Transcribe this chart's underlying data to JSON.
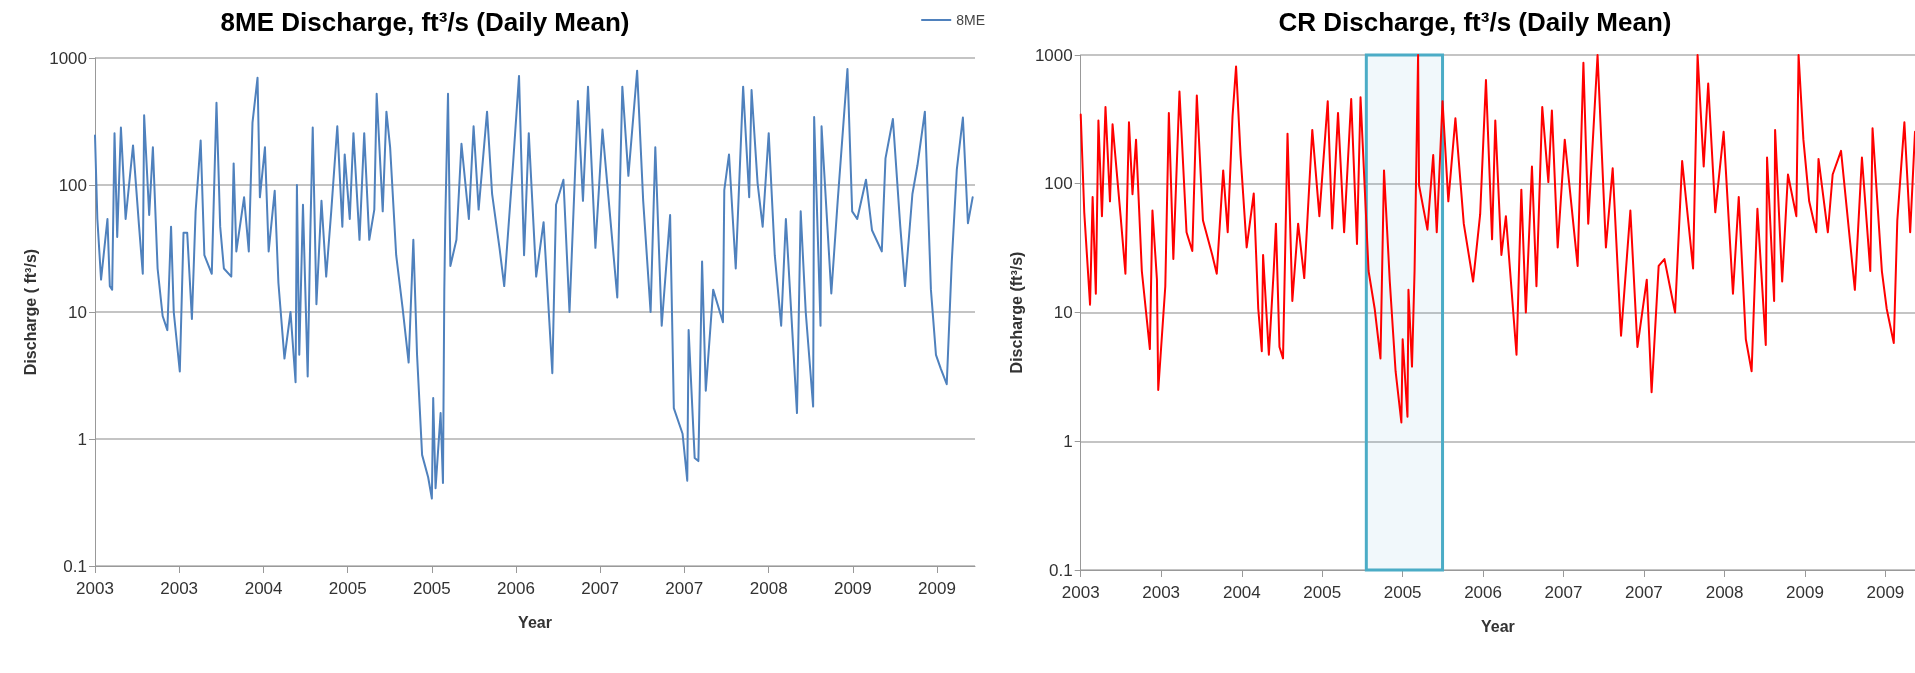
{
  "chart_data": [
    {
      "type": "line",
      "title": "8ME Discharge, ft³/s (Daily Mean)",
      "xlabel": "Year",
      "ylabel": "Discharge ( ft³/s)",
      "log": "y",
      "grid": "y",
      "legend": "top right",
      "marker": "none",
      "line_style": "solid",
      "xlim": [
        "2003-01-01",
        "2010-02-28"
      ],
      "xticks": [
        {
          "value": "2003-01-01",
          "label": "2003"
        },
        {
          "value": "2003-09-08",
          "label": "2003"
        },
        {
          "value": "2004-05-16",
          "label": "2004"
        },
        {
          "value": "2005-01-21",
          "label": "2005"
        },
        {
          "value": "2005-09-28",
          "label": "2005"
        },
        {
          "value": "2006-06-05",
          "label": "2006"
        },
        {
          "value": "2007-02-10",
          "label": "2007"
        },
        {
          "value": "2007-10-18",
          "label": "2007"
        },
        {
          "value": "2008-06-25",
          "label": "2008"
        },
        {
          "value": "2009-03-02",
          "label": "2009"
        },
        {
          "value": "2009-11-07",
          "label": "2009"
        }
      ],
      "ylim": [
        0.1,
        1000
      ],
      "yticks": [
        0.1,
        1,
        10,
        100,
        1000
      ],
      "x": [
        "2003-01-01",
        "2003-01-08",
        "2003-01-19",
        "2003-02-07",
        "2003-02-14",
        "2003-02-21",
        "2003-02-28",
        "2003-03-08",
        "2003-03-19",
        "2003-04-02",
        "2003-04-24",
        "2003-05-12",
        "2003-05-23",
        "2003-05-27",
        "2003-06-11",
        "2003-06-22",
        "2003-07-06",
        "2003-07-21",
        "2003-08-04",
        "2003-08-15",
        "2003-08-23",
        "2003-09-10",
        "2003-09-21",
        "2003-10-02",
        "2003-10-16",
        "2003-10-27",
        "2003-11-11",
        "2003-11-22",
        "2003-12-14",
        "2003-12-28",
        "2004-01-08",
        "2004-01-19",
        "2004-02-10",
        "2004-02-17",
        "2004-02-25",
        "2004-03-19",
        "2004-04-02",
        "2004-04-13",
        "2004-04-28",
        "2004-05-05",
        "2004-05-20",
        "2004-05-31",
        "2004-06-18",
        "2004-06-29",
        "2004-07-17",
        "2004-08-04",
        "2004-08-19",
        "2004-08-23",
        "2004-08-30",
        "2004-09-10",
        "2004-09-24",
        "2004-10-02",
        "2004-10-09",
        "2004-10-20",
        "2004-11-04",
        "2004-11-18",
        "2004-12-03",
        "2004-12-21",
        "2005-01-05",
        "2005-01-12",
        "2005-01-27",
        "2005-02-07",
        "2005-02-25",
        "2005-03-11",
        "2005-03-26",
        "2005-04-10",
        "2005-04-17",
        "2005-05-05",
        "2005-05-16",
        "2005-05-27",
        "2005-06-14",
        "2005-07-03",
        "2005-07-21",
        "2005-08-04",
        "2005-08-15",
        "2005-08-30",
        "2005-09-17",
        "2005-09-28",
        "2005-10-02",
        "2005-10-09",
        "2005-10-24",
        "2005-10-31",
        "2005-11-04",
        "2005-11-07",
        "2005-11-15",
        "2005-11-22",
        "2005-12-10",
        "2005-12-25",
        "2006-01-16",
        "2006-01-30",
        "2006-02-14",
        "2006-03-11",
        "2006-03-26",
        "2006-04-17",
        "2006-05-01",
        "2006-05-27",
        "2006-06-14",
        "2006-06-29",
        "2006-07-13",
        "2006-08-04",
        "2006-08-26",
        "2006-09-21",
        "2006-10-02",
        "2006-10-24",
        "2006-11-11",
        "2006-12-06",
        "2006-12-21",
        "2007-01-05",
        "2007-01-27",
        "2007-02-17",
        "2007-04-02",
        "2007-04-17",
        "2007-05-05",
        "2007-05-31",
        "2007-06-18",
        "2007-07-10",
        "2007-07-24",
        "2007-08-12",
        "2007-09-06",
        "2007-09-17",
        "2007-10-13",
        "2007-10-27",
        "2007-10-31",
        "2007-11-18",
        "2007-11-29",
        "2007-12-10",
        "2007-12-21",
        "2008-01-12",
        "2008-02-10",
        "2008-02-14",
        "2008-02-28",
        "2008-03-19",
        "2008-04-10",
        "2008-04-28",
        "2008-05-05",
        "2008-05-23",
        "2008-06-07",
        "2008-06-25",
        "2008-07-13",
        "2008-08-01",
        "2008-08-15",
        "2008-09-17",
        "2008-09-28",
        "2008-10-13",
        "2008-11-04",
        "2008-11-07",
        "2008-11-26",
        "2008-11-29",
        "2008-12-28",
        "2009-01-16",
        "2009-02-14",
        "2009-02-28",
        "2009-03-15",
        "2009-04-10",
        "2009-04-28",
        "2009-05-27",
        "2009-06-07",
        "2009-06-29",
        "2009-07-21",
        "2009-08-04",
        "2009-08-26",
        "2009-09-10",
        "2009-10-02",
        "2009-10-20",
        "2009-11-04",
        "2009-11-18",
        "2009-12-06",
        "2009-12-21",
        "2010-01-05",
        "2010-01-23",
        "2010-02-07",
        "2010-02-21"
      ],
      "series": [
        {
          "name": "8ME",
          "color": "#4f81bd",
          "values": [
            245,
            54,
            18,
            54,
            16,
            15,
            256,
            39,
            283,
            54,
            205,
            47,
            20,
            354,
            58,
            198,
            22,
            9.3,
            7.2,
            47,
            10,
            3.4,
            42,
            42,
            8.8,
            62,
            224,
            28,
            20,
            445,
            47,
            22,
            19,
            148,
            30,
            80,
            30,
            310,
            700,
            80,
            198,
            30,
            90,
            17,
            4.3,
            10,
            2.8,
            100,
            4.6,
            70,
            3.1,
            44,
            283,
            11.5,
            75,
            19,
            62,
            290,
            47,
            174,
            54,
            256,
            37,
            256,
            37,
            64,
            523,
            62,
            378,
            198,
            28,
            10.8,
            4.0,
            37,
            4.6,
            0.75,
            0.5,
            0.34,
            2.1,
            0.41,
            1.6,
            0.45,
            15,
            54,
            523,
            23,
            37,
            211,
            54,
            290,
            64,
            378,
            85,
            32,
            16,
            143,
            723,
            28,
            256,
            19,
            51,
            3.3,
            70,
            110,
            10,
            458,
            75,
            595,
            32,
            273,
            13,
            595,
            118,
            795,
            75,
            10,
            198,
            7.8,
            58,
            1.75,
            1.1,
            0.47,
            7.2,
            0.71,
            0.67,
            25,
            2.4,
            15,
            8.3,
            91,
            174,
            22,
            595,
            80,
            560,
            103,
            47,
            256,
            28,
            7.8,
            54,
            1.6,
            62,
            10,
            1.8,
            343,
            7.8,
            290,
            14,
            75,
            820,
            62,
            54,
            110,
            44,
            30,
            162,
            331,
            47,
            16,
            85,
            143,
            378,
            15,
            4.6,
            3.6,
            2.7,
            25,
            133,
            340,
            50,
            80
          ]
        }
      ]
    },
    {
      "type": "line",
      "title": "CR Discharge, ft³/s (Daily Mean)",
      "xlabel": "Year",
      "ylabel": "Discharge (ft³/s)",
      "log": "y",
      "grid": "y",
      "marker": "none",
      "line_style": "solid",
      "xlim": [
        "2003-01-01",
        "2010-02-07"
      ],
      "xticks": [
        {
          "value": "2003-01-01",
          "label": "2003"
        },
        {
          "value": "2003-09-08",
          "label": "2003"
        },
        {
          "value": "2004-05-16",
          "label": "2004"
        },
        {
          "value": "2005-01-21",
          "label": "2005"
        },
        {
          "value": "2005-09-28",
          "label": "2005"
        },
        {
          "value": "2006-06-05",
          "label": "2006"
        },
        {
          "value": "2007-02-10",
          "label": "2007"
        },
        {
          "value": "2007-10-18",
          "label": "2007"
        },
        {
          "value": "2008-06-25",
          "label": "2008"
        },
        {
          "value": "2009-03-02",
          "label": "2009"
        },
        {
          "value": "2009-11-07",
          "label": "2009"
        }
      ],
      "ylim": [
        0.1,
        1000
      ],
      "yticks": [
        0.1,
        1,
        10,
        100,
        1000
      ],
      "bands": [
        {
          "axis": "x",
          "from": "2005-06-07",
          "to": "2006-01-30",
          "color": "#4bacc6"
        }
      ],
      "x": [
        "2003-01-01",
        "2003-01-12",
        "2003-01-30",
        "2003-02-07",
        "2003-02-17",
        "2003-02-25",
        "2003-03-08",
        "2003-03-19",
        "2003-04-02",
        "2003-04-10",
        "2003-05-05",
        "2003-05-20",
        "2003-05-31",
        "2003-06-11",
        "2003-06-22",
        "2003-07-10",
        "2003-08-04",
        "2003-08-12",
        "2003-08-26",
        "2003-08-30",
        "2003-09-21",
        "2003-10-02",
        "2003-10-16",
        "2003-11-04",
        "2003-11-26",
        "2003-12-14",
        "2003-12-28",
        "2004-01-16",
        "2004-02-14",
        "2004-02-28",
        "2004-03-19",
        "2004-04-02",
        "2004-04-17",
        "2004-04-28",
        "2004-05-12",
        "2004-05-31",
        "2004-06-22",
        "2004-07-06",
        "2004-07-17",
        "2004-07-21",
        "2004-08-08",
        "2004-08-23",
        "2004-08-30",
        "2004-09-10",
        "2004-09-21",
        "2004-10-05",
        "2004-10-20",
        "2004-11-07",
        "2004-11-26",
        "2004-12-21",
        "2005-01-12",
        "2005-02-07",
        "2005-02-21",
        "2005-03-11",
        "2005-03-30",
        "2005-04-21",
        "2005-05-09",
        "2005-05-20",
        "2005-06-14",
        "2005-07-03",
        "2005-07-21",
        "2005-08-01",
        "2005-08-19",
        "2005-09-06",
        "2005-09-24",
        "2005-09-28",
        "2005-10-13",
        "2005-10-16",
        "2005-10-27",
        "2005-11-04",
        "2005-11-15",
        "2005-11-18",
        "2005-12-14",
        "2006-01-01",
        "2006-01-12",
        "2006-01-30",
        "2006-02-17",
        "2006-03-11",
        "2006-04-06",
        "2006-05-05",
        "2006-05-27",
        "2006-06-14",
        "2006-07-03",
        "2006-07-13",
        "2006-08-01",
        "2006-08-15",
        "2006-09-17",
        "2006-10-02",
        "2006-10-16",
        "2006-11-04",
        "2006-11-18",
        "2006-12-06",
        "2006-12-25",
        "2007-01-05",
        "2007-01-23",
        "2007-02-14",
        "2007-03-26",
        "2007-04-13",
        "2007-04-28",
        "2007-05-27",
        "2007-06-22",
        "2007-07-13",
        "2007-08-08",
        "2007-09-06",
        "2007-09-28",
        "2007-10-27",
        "2007-11-11",
        "2007-12-03",
        "2007-12-21",
        "2008-01-23",
        "2008-02-14",
        "2008-03-19",
        "2008-04-02",
        "2008-04-21",
        "2008-05-05",
        "2008-05-27",
        "2008-06-22",
        "2008-07-21",
        "2008-08-08",
        "2008-08-30",
        "2008-09-17",
        "2008-10-05",
        "2008-10-31",
        "2008-11-04",
        "2008-11-26",
        "2008-11-29",
        "2008-12-21",
        "2009-01-08",
        "2009-02-03",
        "2009-02-10",
        "2009-02-25",
        "2009-03-15",
        "2009-04-06",
        "2009-04-13",
        "2009-05-12",
        "2009-05-27",
        "2009-06-22",
        "2009-08-04",
        "2009-08-26",
        "2009-09-21",
        "2009-09-28",
        "2009-10-27",
        "2009-11-11",
        "2009-12-03",
        "2009-12-14",
        "2010-01-05",
        "2010-01-23",
        "2010-02-07"
      ],
      "series": [
        {
          "color": "#ff0000",
          "values": [
            345,
            60,
            11.5,
            79,
            14,
            310,
            56,
            395,
            73,
            290,
            56,
            20,
            300,
            83,
            220,
            21,
            5.2,
            62,
            18,
            2.5,
            16,
            355,
            26,
            520,
            42,
            30,
            485,
            52,
            28,
            20,
            127,
            42,
            333,
            815,
            167,
            32,
            84,
            10.7,
            5.0,
            28,
            4.7,
            21,
            49,
            5.4,
            4.4,
            245,
            12.3,
            49,
            18.5,
            262,
            56,
            437,
            45,
            355,
            42,
            455,
            34,
            470,
            21,
            10.7,
            4.4,
            127,
            17.4,
            3.5,
            1.4,
            6.2,
            1.55,
            15,
            3.8,
            21,
            1000,
            97,
            44,
            167,
            42,
            437,
            73,
            322,
            49,
            17.4,
            58,
            640,
            37,
            310,
            28,
            56,
            4.7,
            90,
            10,
            136,
            16,
            395,
            103,
            370,
            32,
            220,
            23,
            870,
            49,
            1000,
            32,
            132,
            6.6,
            62,
            5.4,
            18,
            2.4,
            23,
            26,
            10,
            150,
            22,
            1000,
            136,
            600,
            60,
            253,
            14,
            79,
            6.2,
            3.5,
            64,
            5.6,
            160,
            12.3,
            262,
            17.4,
            118,
            56,
            1000,
            220,
            73,
            42,
            156,
            42,
            118,
            180,
            15,
            160,
            21,
            270,
            21,
            10.7,
            5.8,
            52,
            300,
            42,
            253
          ]
        }
      ]
    }
  ]
}
